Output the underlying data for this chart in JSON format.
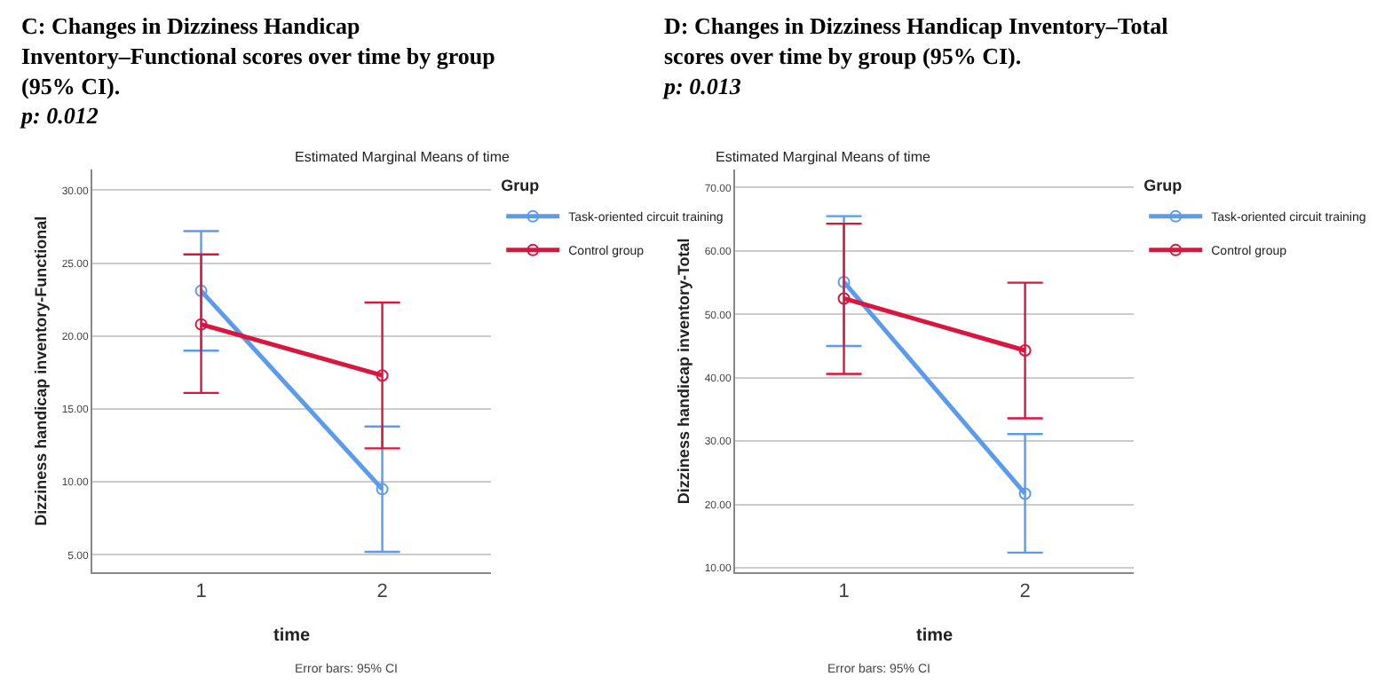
{
  "chart_data": [
    {
      "type": "line",
      "title": "C: Changes in Dizziness Handicap Inventory–Functional scores over time by group (95% CI).",
      "subtitle": "Estimated Marginal Means of time",
      "xlabel": "time",
      "ylabel": "Dizziness handicap inventory-Functional",
      "legend_title": "Grup",
      "annotations": [
        "p: 0.012",
        "Error bars: 95% CI"
      ],
      "categories": [
        "1",
        "2"
      ],
      "ylim": [
        3.8,
        31.4
      ],
      "yticks": [
        {
          "value": 5,
          "label": "5.00"
        },
        {
          "value": 10,
          "label": "10.00"
        },
        {
          "value": 15,
          "label": "15.00"
        },
        {
          "value": 20,
          "label": "20.00"
        },
        {
          "value": 25,
          "label": "25.00"
        },
        {
          "value": 30,
          "label": "30.00"
        }
      ],
      "grid": "y",
      "legend": "top right",
      "marker": "circle",
      "series": [
        {
          "name": "Task-oriented circuit training",
          "color": "#5b9bea",
          "values": [
            23.1,
            9.5
          ],
          "errors": [
            [
              19.0,
              27.2
            ],
            [
              5.2,
              13.8
            ]
          ]
        },
        {
          "name": "Control group",
          "color": "#d9163f",
          "values": [
            20.8,
            17.3
          ],
          "errors": [
            [
              16.1,
              25.6
            ],
            [
              12.3,
              22.3
            ]
          ]
        }
      ]
    },
    {
      "type": "line",
      "title": "D: Changes in Dizziness Handicap Inventory–Total scores over time by group (95% CI).",
      "subtitle": "Estimated Marginal Means of time",
      "xlabel": "time",
      "ylabel": "Dizziness handicap inventory-Total",
      "legend_title": "Grup",
      "annotations": [
        "p: 0.013",
        "Error bars: 95% CI"
      ],
      "categories": [
        "1",
        "2"
      ],
      "ylim": [
        9.3,
        72.8
      ],
      "yticks": [
        {
          "value": 10,
          "label": "10.00"
        },
        {
          "value": 20,
          "label": "20.00"
        },
        {
          "value": 30,
          "label": "30.00"
        },
        {
          "value": 40,
          "label": "40.00"
        },
        {
          "value": 50,
          "label": "50.00"
        },
        {
          "value": 60,
          "label": "60.00"
        },
        {
          "value": 70,
          "label": "70.00"
        }
      ],
      "grid": "y",
      "legend": "top right",
      "marker": "circle",
      "series": [
        {
          "name": "Task-oriented circuit training",
          "color": "#5b9bea",
          "values": [
            55.1,
            21.7
          ],
          "errors": [
            [
              45.0,
              65.5
            ],
            [
              12.4,
              31.1
            ]
          ]
        },
        {
          "name": "Control group",
          "color": "#d9163f",
          "values": [
            52.5,
            44.3
          ],
          "errors": [
            [
              40.6,
              64.3
            ],
            [
              33.6,
              55.0
            ]
          ]
        }
      ]
    }
  ]
}
